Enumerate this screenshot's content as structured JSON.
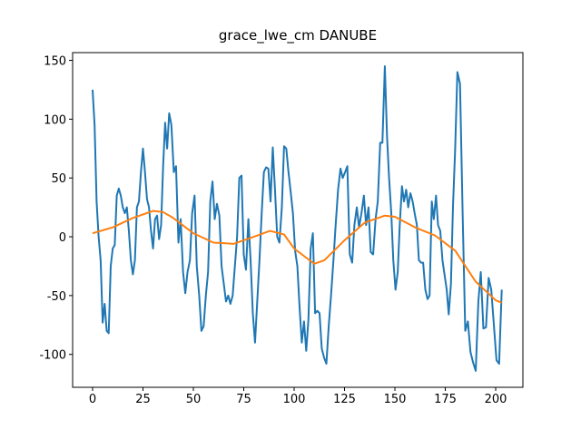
{
  "chart_data": {
    "type": "line",
    "title": "grace_lwe_cm DANUBE",
    "xlim": [
      -9.9,
      213.5
    ],
    "ylim": [
      -128,
      156.6
    ],
    "xticks": [
      0,
      25,
      50,
      75,
      100,
      125,
      150,
      175,
      200
    ],
    "yticks": [
      -100,
      -50,
      0,
      50,
      100,
      150
    ],
    "series": [
      {
        "color": "#1f77b4",
        "x": [
          0,
          1,
          2,
          3,
          4,
          5,
          6,
          7,
          8,
          9,
          10,
          11,
          12,
          13,
          14,
          15,
          16,
          17,
          18,
          19,
          20,
          21,
          22,
          23,
          24,
          25,
          26,
          27,
          28,
          29,
          30,
          31,
          32,
          33,
          34,
          35,
          36,
          37,
          38,
          39.1,
          40.3,
          41.4,
          42.6,
          43.7,
          44.9,
          46,
          47.1,
          48.3,
          49.4,
          50.6,
          51.7,
          52.9,
          54,
          55.1,
          56.2,
          57.3,
          58.4,
          59.5,
          60.6,
          61.7,
          62.9,
          64,
          65.1,
          66.2,
          67.3,
          68.4,
          69.5,
          70.6,
          71.7,
          72.8,
          73.9,
          75,
          76.1,
          77.3,
          78.4,
          79.5,
          80.6,
          81.7,
          82.8,
          83.9,
          85,
          86.1,
          87.2,
          88.3,
          89.4,
          90.5,
          91.6,
          92.7,
          93.9,
          95,
          96.1,
          97.2,
          98.3,
          99.4,
          100.5,
          101.6,
          102.7,
          103.8,
          104.9,
          106,
          107.1,
          108.2,
          109.3,
          110.4,
          111.5,
          112.6,
          113.7,
          114.9,
          116,
          117.2,
          118.3,
          119.5,
          120.6,
          121.8,
          123,
          124.1,
          125.3,
          126.4,
          127.6,
          128.8,
          129.9,
          131.1,
          132.2,
          133.4,
          134.6,
          135.7,
          136.9,
          138,
          139.2,
          140.4,
          141.5,
          142.7,
          143.8,
          145,
          146.1,
          147.1,
          148.2,
          149.2,
          150.3,
          151.4,
          152.4,
          153.5,
          154.5,
          155.6,
          156.6,
          157.7,
          158.8,
          159.8,
          160.9,
          161.9,
          163,
          164,
          165.1,
          166.2,
          167.2,
          168.3,
          169.3,
          170.4,
          171.4,
          172.5,
          173.6,
          174.6,
          175.7,
          176.7,
          177.8,
          178.8,
          179.9,
          181,
          182.3,
          183.6,
          184.9,
          186.2,
          187.5,
          188.8,
          190.1,
          191.4,
          192.6,
          193.9,
          195.2,
          196.5,
          197.8,
          199.1,
          200.4,
          201.7,
          203
        ],
        "values": [
          125,
          95,
          30,
          0,
          -20,
          -73,
          -57,
          -80,
          -82,
          -25,
          -10,
          -7,
          35,
          41,
          35,
          25,
          20,
          25,
          5,
          -20,
          -32,
          -20,
          25,
          30,
          55,
          75,
          55,
          32,
          25,
          5,
          -10,
          15,
          18,
          -2,
          10,
          60,
          97,
          75,
          105,
          95,
          55,
          60,
          -5,
          15,
          -30,
          -48,
          -30,
          -20,
          20,
          35,
          -25,
          -50,
          -80,
          -76,
          -50,
          -30,
          30,
          47,
          15,
          28,
          18,
          -25,
          -40,
          -55,
          -50,
          -57,
          -50,
          -25,
          0,
          50,
          52,
          -15,
          -28,
          15,
          -20,
          -65,
          -90,
          -55,
          -20,
          20,
          55,
          59,
          58,
          30,
          76,
          40,
          0,
          -5,
          25,
          77,
          75,
          55,
          38,
          20,
          -12,
          -25,
          -60,
          -90,
          -72,
          -97,
          -70,
          -10,
          3,
          -65,
          -63,
          -65,
          -95,
          -103,
          -108,
          -75,
          -50,
          -20,
          10,
          40,
          58,
          50,
          55,
          60,
          -15,
          -22,
          10,
          25,
          8,
          20,
          35,
          10,
          25,
          -13,
          -15,
          15,
          30,
          80,
          80,
          145,
          85,
          50,
          20,
          -20,
          -45,
          -30,
          10,
          43,
          30,
          40,
          25,
          37,
          30,
          20,
          10,
          -20,
          -22,
          -22,
          -45,
          -53,
          -50,
          30,
          15,
          35,
          10,
          5,
          -20,
          -32,
          -45,
          -66,
          -40,
          25,
          75,
          140,
          130,
          20,
          -80,
          -72,
          -98,
          -107,
          -114,
          -55,
          -30,
          -78,
          -77,
          -35,
          -45,
          -75,
          -105,
          -108,
          -45
        ]
      },
      {
        "color": "#ff7f0e",
        "x": [
          0,
          10,
          20,
          30,
          35,
          40,
          50,
          60,
          70,
          80,
          88,
          95,
          100,
          110,
          115,
          125,
          135,
          145,
          150,
          160,
          170,
          180,
          190,
          200,
          203
        ],
        "values": [
          3,
          8,
          16,
          22,
          21,
          16,
          3,
          -5,
          -6,
          0,
          5,
          2,
          -10,
          -23,
          -20,
          -3,
          12,
          18,
          17,
          8,
          1,
          -12,
          -38,
          -54,
          -56
        ]
      }
    ]
  }
}
